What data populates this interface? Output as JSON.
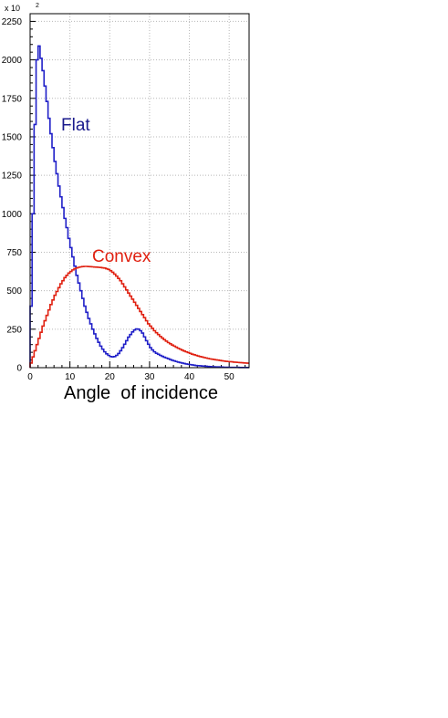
{
  "chart_data": {
    "type": "line",
    "title": "",
    "xlabel": "Angle  of incidence",
    "ylabel": "",
    "y_multiplier_label": "x 10",
    "y_multiplier_exponent": "2",
    "xlim": [
      0,
      55
    ],
    "ylim": [
      0,
      2300
    ],
    "x_ticks": [
      0,
      10,
      20,
      30,
      40,
      50
    ],
    "y_ticks": [
      0,
      250,
      500,
      750,
      1000,
      1250,
      1500,
      1750,
      2000,
      2250
    ],
    "grid": true,
    "series": [
      {
        "name": "Flat",
        "color": "#1f1fc8",
        "x": [
          0,
          0.5,
          1,
          1.5,
          2,
          2.5,
          3,
          3.5,
          4,
          4.5,
          5,
          5.5,
          6,
          6.5,
          7,
          7.5,
          8,
          8.5,
          9,
          9.5,
          10,
          10.5,
          11,
          11.5,
          12,
          12.5,
          13,
          13.5,
          14,
          14.5,
          15,
          15.5,
          16,
          16.5,
          17,
          17.5,
          18,
          18.5,
          19,
          19.5,
          20,
          20.5,
          21,
          21.5,
          22,
          22.5,
          23,
          23.5,
          24,
          24.5,
          25,
          25.5,
          26,
          26.5,
          27,
          27.5,
          28,
          28.5,
          29,
          29.5,
          30,
          30.5,
          31,
          31.5,
          32,
          32.5,
          33,
          33.5,
          34,
          34.5,
          35,
          35.5,
          36,
          36.5,
          37,
          37.5,
          38,
          38.5,
          39,
          39.5,
          40,
          40.5,
          41,
          41.5,
          42,
          42.5,
          43,
          43.5,
          44,
          44.5,
          45,
          45.5,
          46,
          46.5,
          47,
          47.5,
          48,
          48.5,
          49,
          49.5,
          50,
          50.5,
          51,
          51.5,
          52,
          52.5,
          53,
          53.5,
          54,
          54.5
        ],
        "values": [
          400,
          1000,
          1580,
          2000,
          2090,
          2010,
          1930,
          1830,
          1730,
          1620,
          1520,
          1430,
          1340,
          1260,
          1180,
          1110,
          1040,
          970,
          910,
          840,
          780,
          720,
          660,
          600,
          550,
          500,
          450,
          400,
          360,
          320,
          285,
          250,
          220,
          190,
          165,
          140,
          120,
          103,
          90,
          80,
          72,
          70,
          72,
          80,
          92,
          110,
          130,
          152,
          175,
          198,
          215,
          232,
          245,
          252,
          250,
          240,
          225,
          200,
          175,
          152,
          130,
          115,
          103,
          94,
          87,
          80,
          74,
          68,
          63,
          58,
          53,
          48,
          44,
          40,
          36,
          33,
          30,
          27,
          24,
          22,
          20,
          18,
          16,
          14,
          13,
          12,
          11,
          10,
          9,
          8,
          7,
          6,
          6,
          5,
          5,
          4,
          4,
          3,
          3,
          3,
          2,
          2,
          2,
          2,
          2,
          1,
          1,
          1,
          1,
          1
        ]
      },
      {
        "name": "Convex",
        "color": "#e02010",
        "x": [
          0,
          0.5,
          1,
          1.5,
          2,
          2.5,
          3,
          3.5,
          4,
          4.5,
          5,
          5.5,
          6,
          6.5,
          7,
          7.5,
          8,
          8.5,
          9,
          9.5,
          10,
          10.5,
          11,
          11.5,
          12,
          12.5,
          13,
          13.5,
          14,
          14.5,
          15,
          15.5,
          16,
          16.5,
          17,
          17.5,
          18,
          18.5,
          19,
          19.5,
          20,
          20.5,
          21,
          21.5,
          22,
          22.5,
          23,
          23.5,
          24,
          24.5,
          25,
          25.5,
          26,
          26.5,
          27,
          27.5,
          28,
          28.5,
          29,
          29.5,
          30,
          30.5,
          31,
          31.5,
          32,
          32.5,
          33,
          33.5,
          34,
          34.5,
          35,
          35.5,
          36,
          36.5,
          37,
          37.5,
          38,
          38.5,
          39,
          39.5,
          40,
          40.5,
          41,
          41.5,
          42,
          42.5,
          43,
          43.5,
          44,
          44.5,
          45,
          45.5,
          46,
          46.5,
          47,
          47.5,
          48,
          48.5,
          49,
          49.5,
          50,
          50.5,
          51,
          51.5,
          52,
          52.5,
          53,
          53.5,
          54,
          54.5
        ],
        "values": [
          30,
          70,
          110,
          150,
          190,
          230,
          270,
          305,
          340,
          375,
          410,
          440,
          470,
          495,
          520,
          545,
          565,
          585,
          600,
          615,
          625,
          635,
          643,
          648,
          652,
          655,
          657,
          658,
          658,
          657,
          656,
          655,
          654,
          653,
          652,
          651,
          649,
          647,
          643,
          638,
          630,
          620,
          608,
          595,
          580,
          565,
          545,
          525,
          505,
          485,
          465,
          445,
          425,
          405,
          385,
          365,
          345,
          325,
          305,
          285,
          270,
          255,
          240,
          227,
          215,
          203,
          192,
          182,
          172,
          163,
          155,
          147,
          140,
          133,
          126,
          120,
          114,
          108,
          103,
          98,
          93,
          88,
          84,
          80,
          76,
          72,
          69,
          66,
          63,
          60,
          57,
          55,
          53,
          51,
          49,
          47,
          45,
          43,
          41,
          40,
          39,
          38,
          36,
          35,
          34,
          33,
          32,
          31,
          30,
          29
        ]
      }
    ]
  }
}
